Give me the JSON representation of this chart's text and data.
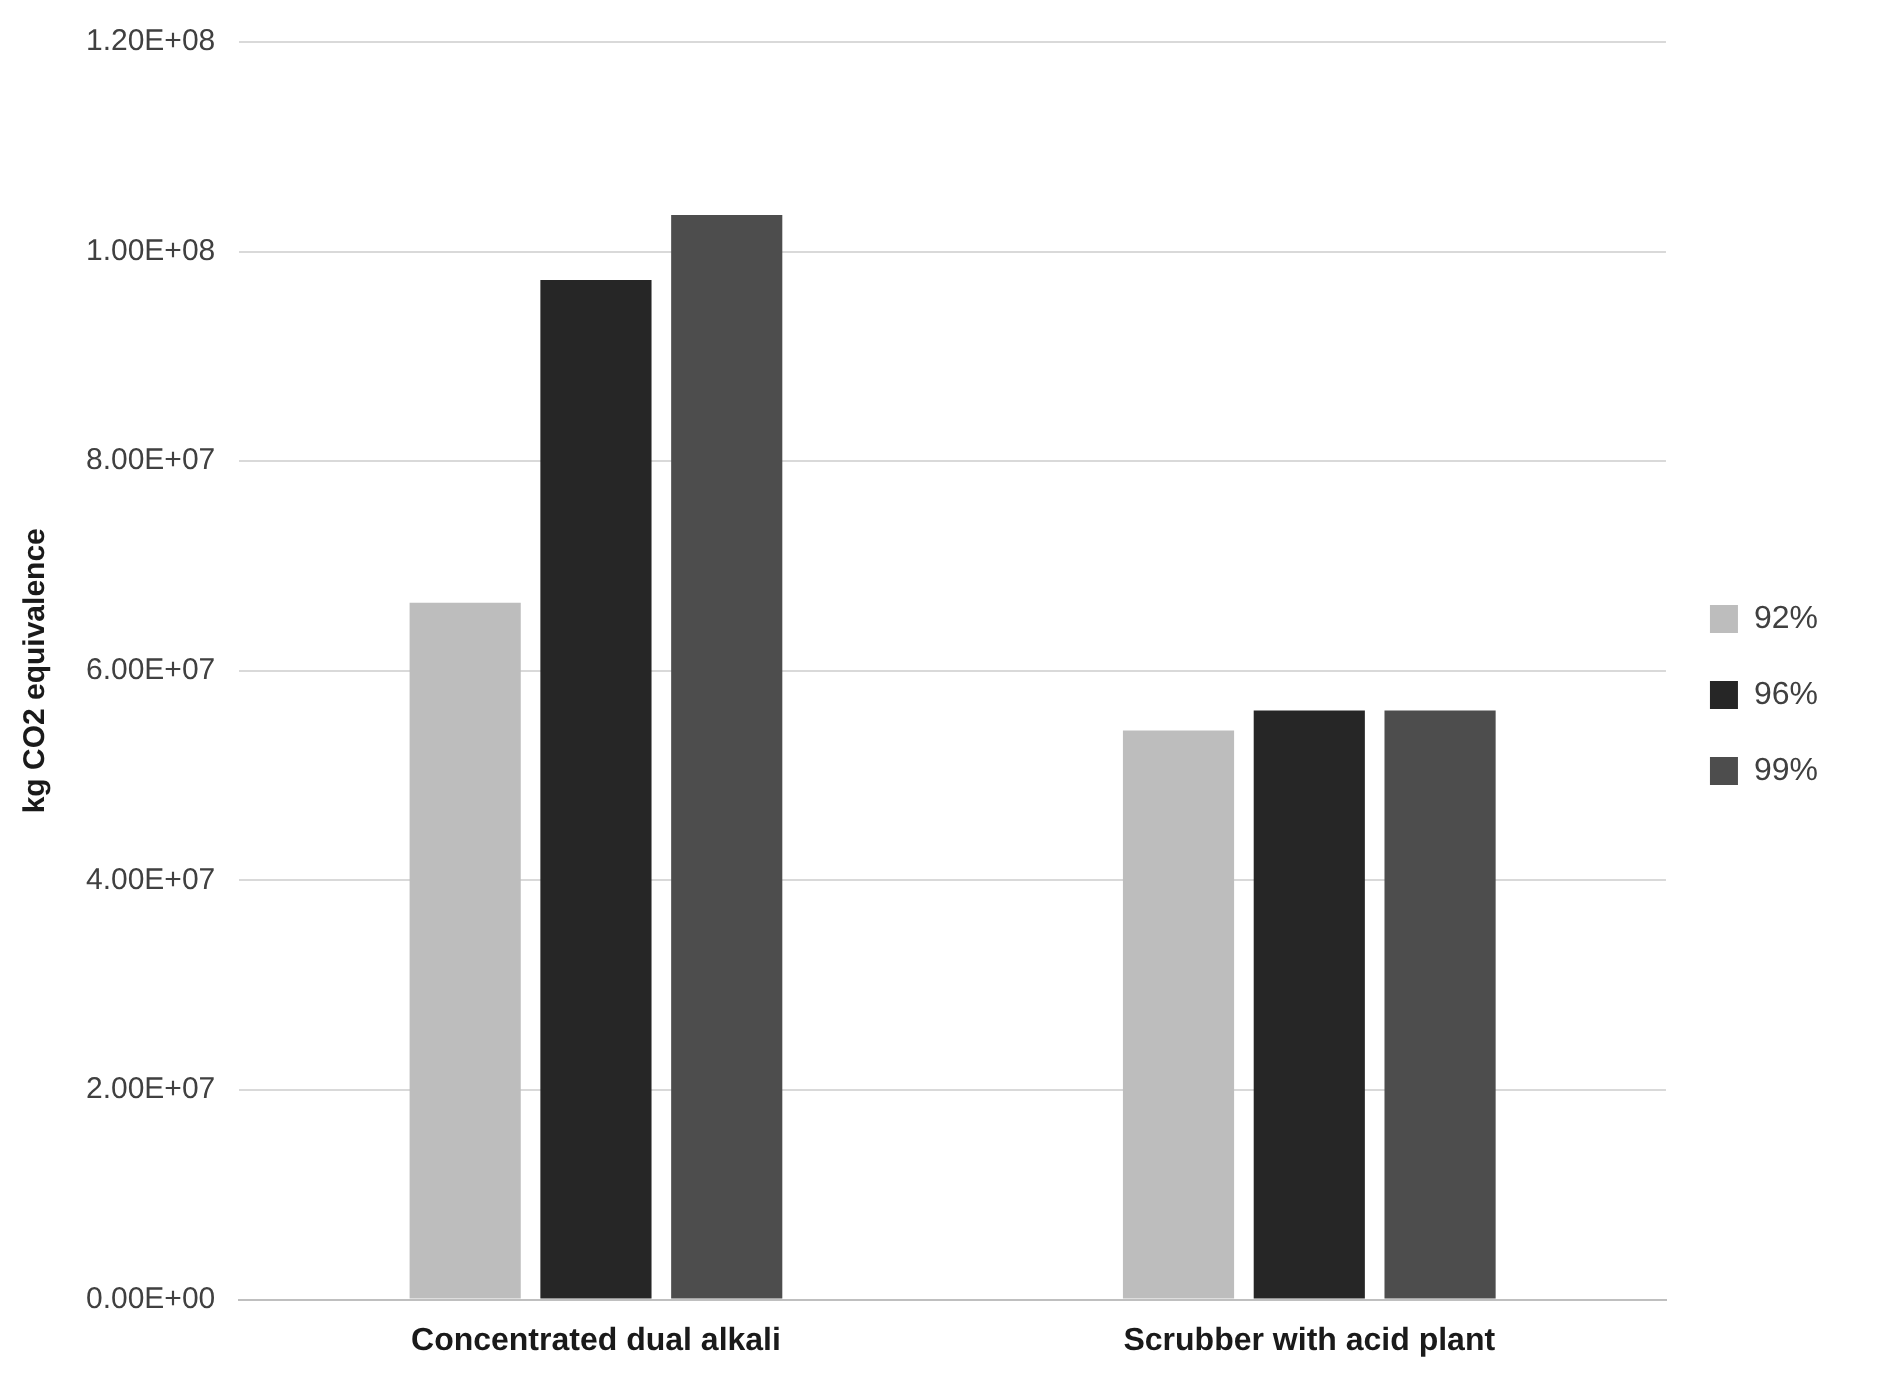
{
  "chart_data": {
    "type": "bar",
    "ylabel": "kg CO2 equivalence",
    "categories": [
      "Concentrated dual alkali",
      "Scrubber with acid plant"
    ],
    "series": [
      {
        "name": "92%",
        "color": "#bdbdbd",
        "values": [
          66500000,
          54300000
        ]
      },
      {
        "name": "96%",
        "color": "#262626",
        "values": [
          97300000,
          56200000
        ]
      },
      {
        "name": "99%",
        "color": "#4d4d4d",
        "values": [
          103500000,
          56200000
        ]
      }
    ],
    "ylim": [
      0,
      120000000
    ],
    "yticks": [
      {
        "value": 0,
        "label": "0.00E+00"
      },
      {
        "value": 20000000,
        "label": "2.00E+07"
      },
      {
        "value": 40000000,
        "label": "4.00E+07"
      },
      {
        "value": 60000000,
        "label": "6.00E+07"
      },
      {
        "value": 80000000,
        "label": "8.00E+07"
      },
      {
        "value": 100000000,
        "label": "1.00E+08"
      },
      {
        "value": 120000000,
        "label": "1.20E+08"
      }
    ],
    "grid": "y",
    "legend": "right"
  }
}
